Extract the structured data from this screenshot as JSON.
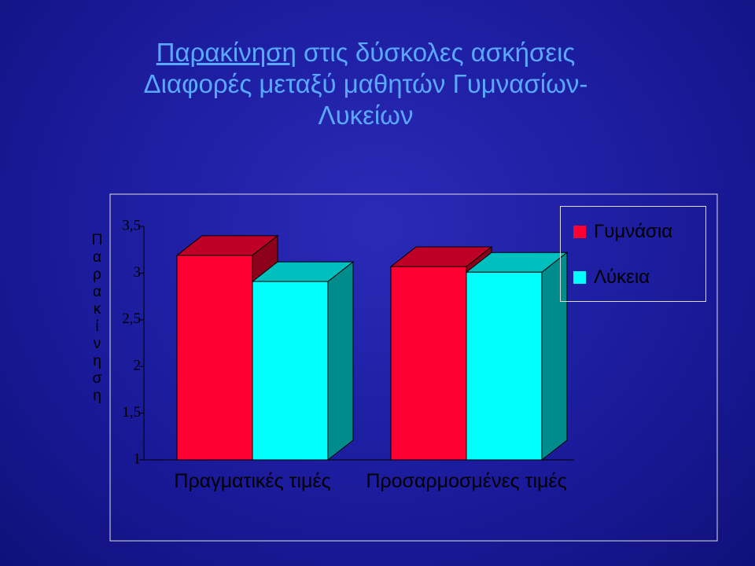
{
  "chart_data": {
    "type": "bar3d",
    "title_lines": [
      [
        "Παρακίνηση",
        "στις δύσκολες ασκήσεις"
      ],
      [
        "Διαφορές μεταξύ μαθητών Γυμνασίων-"
      ],
      [
        "Λυκείων"
      ]
    ],
    "y_label": "Παρακίνηση",
    "categories": [
      "Πραγματικές τιμές",
      "Προσαρμοσμένες τιμές"
    ],
    "series": [
      {
        "name": "Γυμνάσια",
        "color": "#ff0033",
        "values": [
          3.19,
          3.07
        ]
      },
      {
        "name": "Λύκεια",
        "color": "#00ffff",
        "values": [
          2.91,
          3.01
        ]
      }
    ],
    "ylim": [
      1,
      3.5
    ],
    "yticks": [
      1,
      {
        "value": 1.5,
        "label": "1,5"
      },
      2,
      {
        "value": 2.5,
        "label": "2,5"
      },
      3,
      {
        "value": 3.5,
        "label": "3,5"
      }
    ]
  }
}
